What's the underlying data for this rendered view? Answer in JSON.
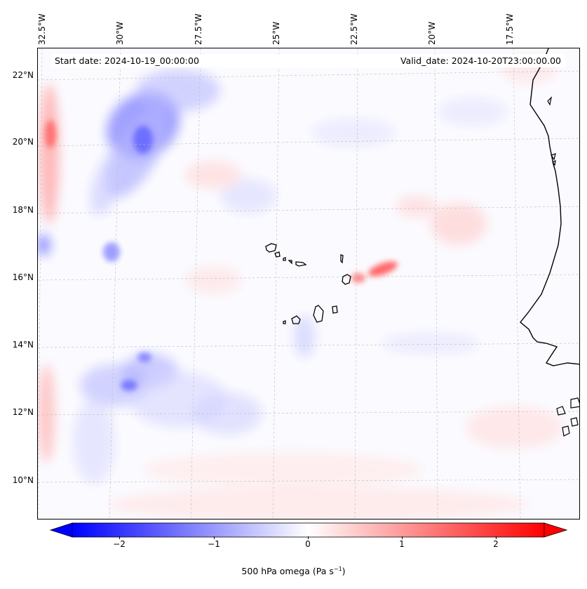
{
  "map": {
    "start_date": "Start date: 2024-10-19_00:00:00",
    "valid_date": "Valid_date: 2024-10-20T23:00:00.00",
    "lon_labels": [
      "32.5°W",
      "30°W",
      "27.5°W",
      "25°W",
      "22.5°W",
      "20°W",
      "17.5°W"
    ],
    "lat_labels": [
      "22°N",
      "20°N",
      "18°N",
      "16°N",
      "14°N",
      "12°N",
      "10°N"
    ]
  },
  "colorbar": {
    "label": "500 hPa omega (Pa s",
    "label_exp": "−1",
    "label_tail": ")",
    "ticks": [
      "−2",
      "−1",
      "0",
      "1",
      "2"
    ],
    "min_color": "#0000ff",
    "mid_color": "#ffffff",
    "max_color": "#ff0000"
  }
}
